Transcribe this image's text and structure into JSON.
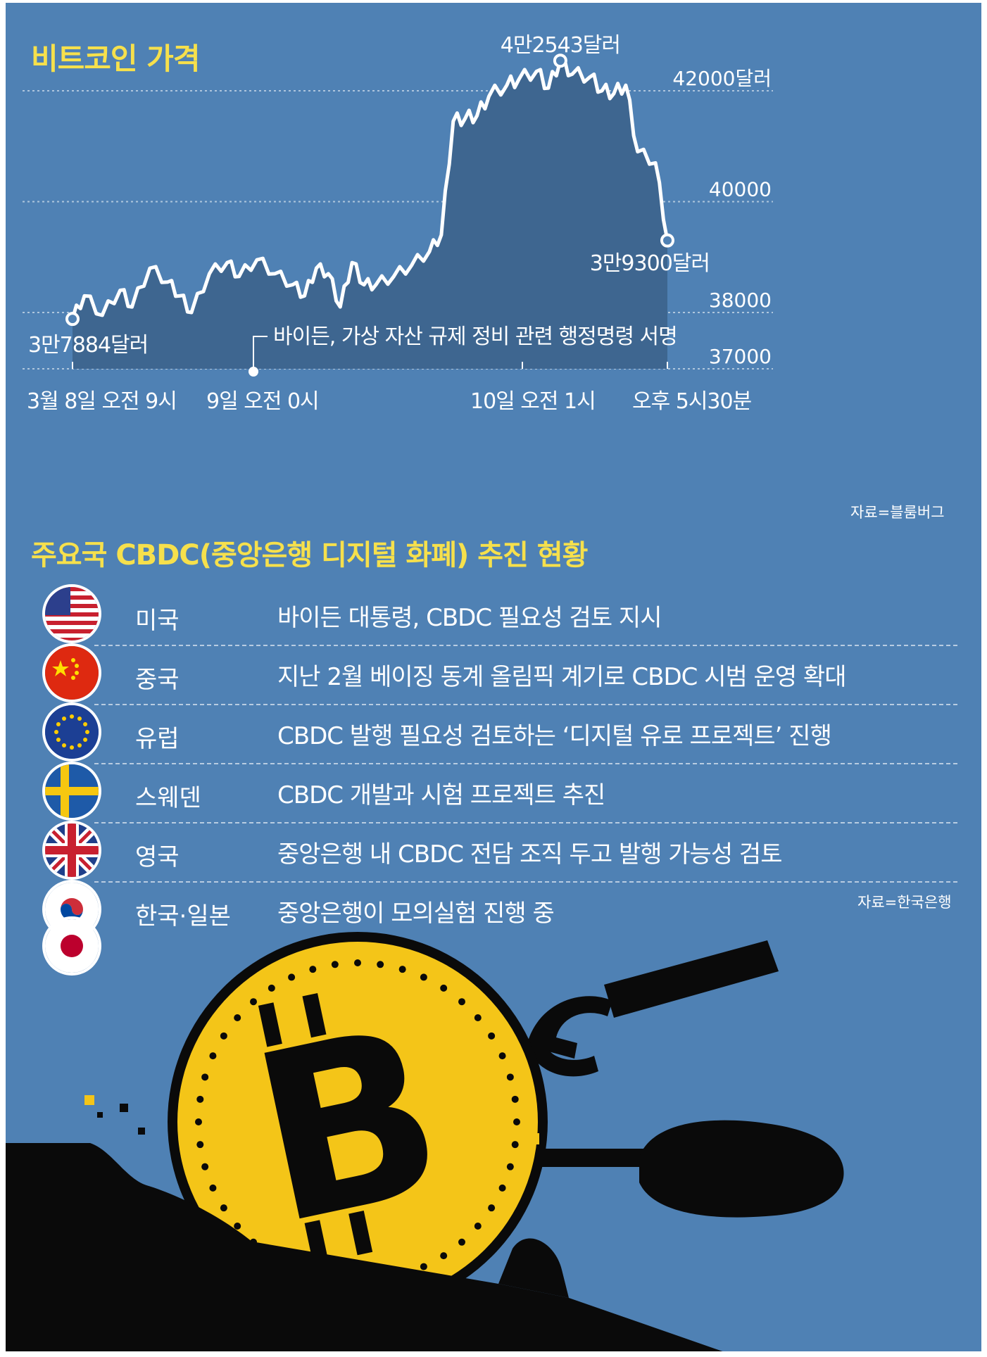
{
  "chart_data": {
    "type": "area",
    "title": "비트코인 가격",
    "x_ticks": [
      "3월 8일 오전 9시",
      "9일 오전 0시",
      "10일 오전 1시",
      "오후 5시30분"
    ],
    "y_ticks": [
      "42000달러",
      "40000",
      "38000",
      "37000"
    ],
    "y_tick_values": [
      42000,
      40000,
      38000,
      37000
    ],
    "start_label": "3만7884달러",
    "peak_label": "4만2543달러",
    "end_label": "3만9300달러",
    "start_value": 37884,
    "peak_value": 42543,
    "end_value": 39300,
    "annotation": "바이든, 가상 자산 규제 정비 관련 행정명령 서명",
    "source": "자료=블룸버그",
    "grid": true
  },
  "cbdc": {
    "title": "주요국 CBDC(중앙은행 디지털 화폐) 추진 현황",
    "source": "자료=한국은행",
    "rows": [
      {
        "country": "미국",
        "text": "바이든 대통령, CBDC 필요성 검토 지시",
        "flag": "usa-flag-icon"
      },
      {
        "country": "중국",
        "text": "지난 2월 베이징 동계 올림픽 계기로 CBDC 시범 운영 확대",
        "flag": "china-flag-icon"
      },
      {
        "country": "유럽",
        "text": "CBDC 발행 필요성 검토하는 ‘디지털 유로 프로젝트’ 진행",
        "flag": "eu-flag-icon"
      },
      {
        "country": "스웨덴",
        "text": "CBDC 개발과 시험 프로젝트 추진",
        "flag": "sweden-flag-icon"
      },
      {
        "country": "영국",
        "text": "중앙은행 내 CBDC 전담 조직 두고 발행 가능성 검토",
        "flag": "uk-flag-icon"
      },
      {
        "country": "한국·일본",
        "text": "중앙은행이 모의실험 진행 중",
        "flag": "korea-japan-flag-icon"
      }
    ]
  },
  "colors": {
    "background": "#4f81b4",
    "area_fill": "#3e6690",
    "line": "#ffffff",
    "title": "#f6e04c",
    "coin": "#f4c518",
    "ground": "#0a0a0a"
  }
}
